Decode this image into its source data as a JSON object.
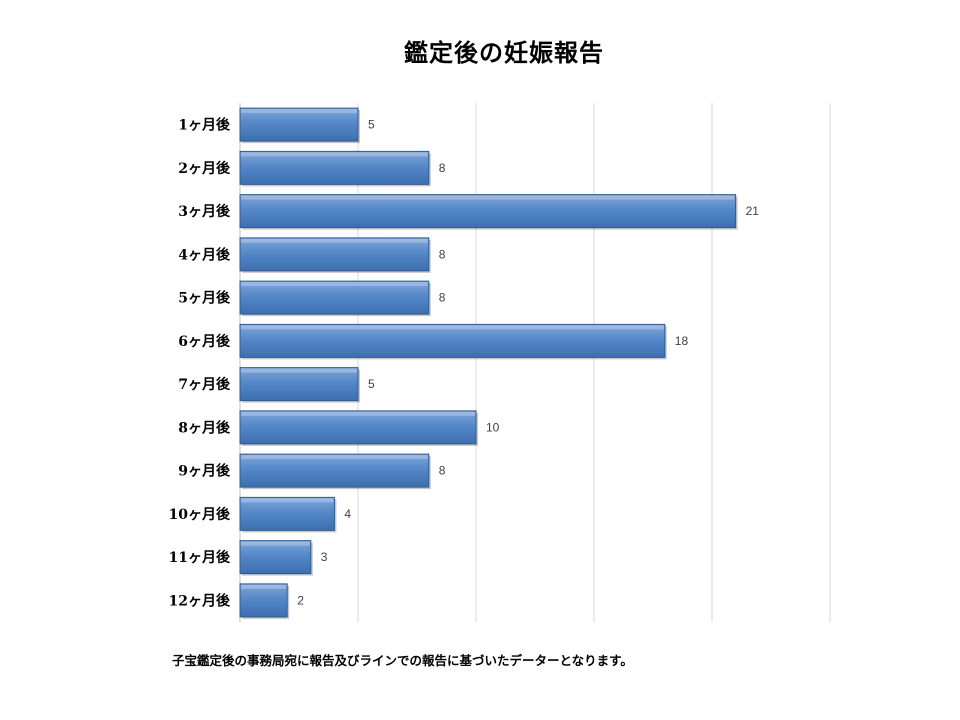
{
  "chart_data": {
    "type": "bar",
    "orientation": "horizontal",
    "title": "鑑定後の妊娠報告",
    "categories": [
      "1ヶ月後",
      "2ヶ月後",
      "3ヶ月後",
      "4ヶ月後",
      "5ヶ月後",
      "6ヶ月後",
      "7ヶ月後",
      "8ヶ月後",
      "9ヶ月後",
      "10ヶ月後",
      "11ヶ月後",
      "12ヶ月後"
    ],
    "values": [
      5,
      8,
      21,
      8,
      8,
      18,
      5,
      10,
      8,
      4,
      3,
      2
    ],
    "xlim": [
      0,
      25
    ],
    "grid": true,
    "legend": "none",
    "data_labels": true,
    "bar_color": "#4F81BD"
  },
  "footnote": "子宝鑑定後の事務局宛に報告及びラインでの報告に基づいたデーターとなります。"
}
